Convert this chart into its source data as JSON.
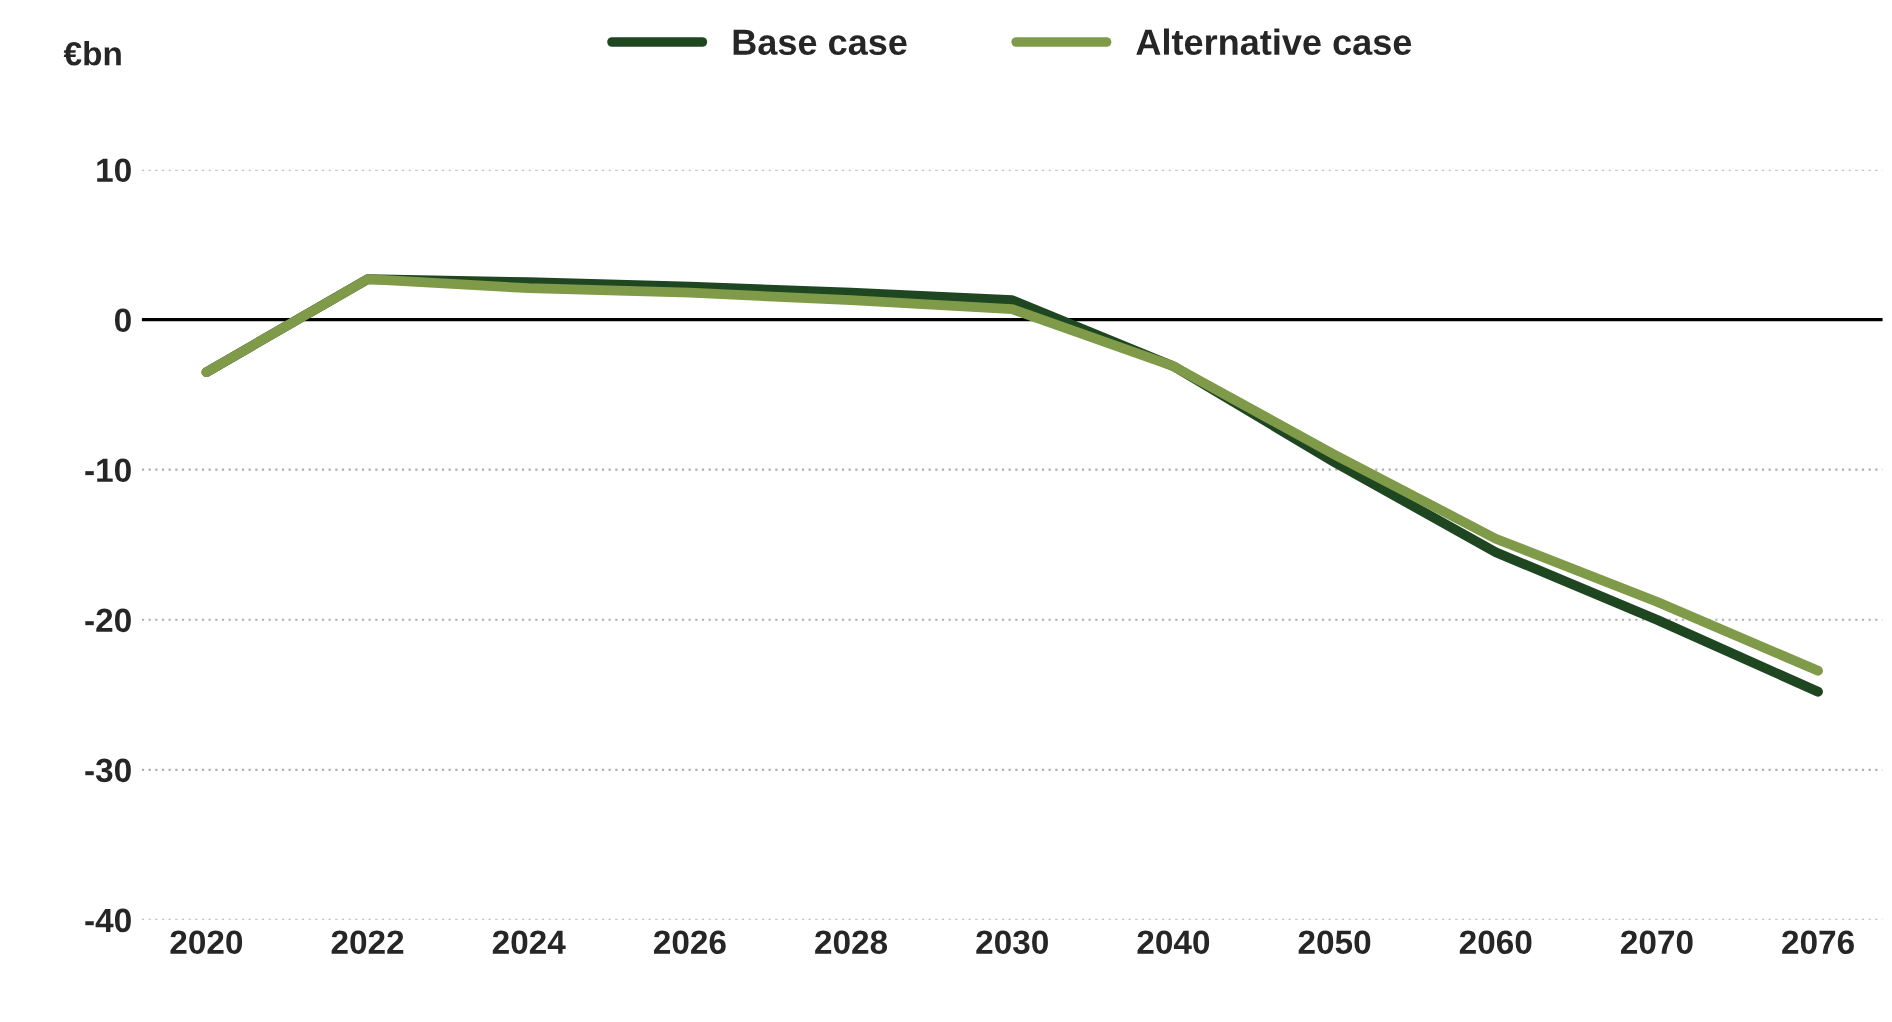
{
  "chart_data": {
    "type": "line",
    "ylabel": "€bn",
    "categories": [
      "2020",
      "2022",
      "2024",
      "2026",
      "2028",
      "2030",
      "2040",
      "2050",
      "2060",
      "2070",
      "2076"
    ],
    "series": [
      {
        "name": "Base case",
        "color": "#1e4620",
        "values": [
          -3.5,
          2.7,
          2.5,
          2.2,
          1.8,
          1.3,
          -3.1,
          -9.5,
          -15.5,
          -20.0,
          -24.8
        ]
      },
      {
        "name": "Alternative case",
        "color": "#7f9a48",
        "values": [
          -3.5,
          2.7,
          2.1,
          1.8,
          1.3,
          0.7,
          -3.1,
          -9.0,
          -14.6,
          -18.8,
          -23.4
        ]
      }
    ],
    "ylim": [
      -40,
      10
    ],
    "yticks": [
      -40,
      -30,
      -20,
      -10,
      0,
      10
    ],
    "grid": "y",
    "legend": "top",
    "ref_lines": [
      {
        "axis": "y",
        "value": 0,
        "color": "#000000"
      }
    ]
  }
}
